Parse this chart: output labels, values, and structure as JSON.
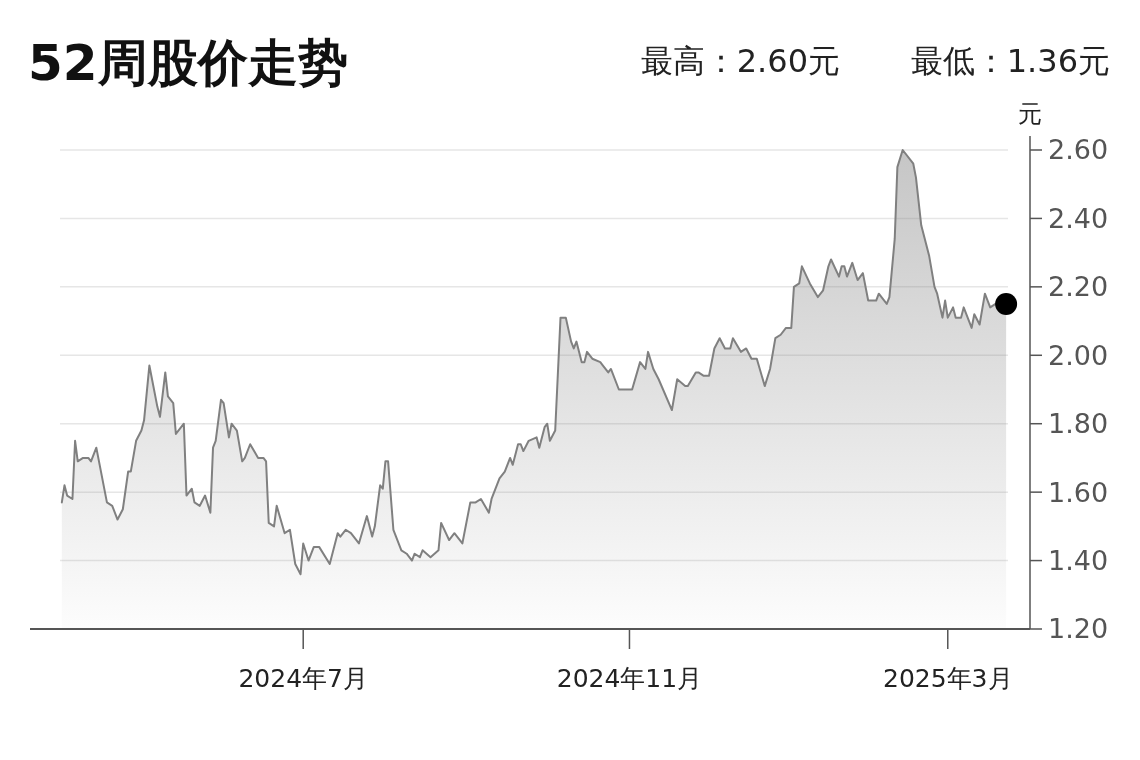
{
  "chart_data": {
    "type": "area",
    "title": "52周股价走势",
    "annotations": [
      "最高：2.60元",
      "最低：1.36元"
    ],
    "ylabel": "元",
    "xlim": [
      "2024-03-20",
      "2025-04-01"
    ],
    "xticks": [
      {
        "value": "2024-07-01",
        "label": "2024年7月"
      },
      {
        "value": "2024-11-01",
        "label": "2024年11月"
      },
      {
        "value": "2025-03-01",
        "label": "2025年3月"
      }
    ],
    "ylim": [
      1.2,
      2.6
    ],
    "yticks": [
      {
        "value": 1.2,
        "label": "1.20"
      },
      {
        "value": 1.4,
        "label": "1.40"
      },
      {
        "value": 1.6,
        "label": "1.60"
      },
      {
        "value": 1.8,
        "label": "1.80"
      },
      {
        "value": 2.0,
        "label": "2.00"
      },
      {
        "value": 2.2,
        "label": "2.20"
      },
      {
        "value": 2.4,
        "label": "2.40"
      },
      {
        "value": 2.6,
        "label": "2.60"
      }
    ],
    "grid": "y",
    "series": [
      {
        "color": "#808080",
        "x": [
          "2024-04-01",
          "2024-04-02",
          "2024-04-03",
          "2024-04-05",
          "2024-04-06",
          "2024-04-07",
          "2024-04-09",
          "2024-04-11",
          "2024-04-12",
          "2024-04-14",
          "2024-04-18",
          "2024-04-20",
          "2024-04-22",
          "2024-04-24",
          "2024-04-26",
          "2024-04-27",
          "2024-04-29",
          "2024-05-01",
          "2024-05-02",
          "2024-05-04",
          "2024-05-07",
          "2024-05-08",
          "2024-05-10",
          "2024-05-11",
          "2024-05-13",
          "2024-05-14",
          "2024-05-17",
          "2024-05-18",
          "2024-05-20",
          "2024-05-21",
          "2024-05-23",
          "2024-05-25",
          "2024-05-27",
          "2024-05-28",
          "2024-05-29",
          "2024-05-31",
          "2024-06-01",
          "2024-06-03",
          "2024-06-04",
          "2024-06-06",
          "2024-06-08",
          "2024-06-09",
          "2024-06-11",
          "2024-06-14",
          "2024-06-16",
          "2024-06-17",
          "2024-06-18",
          "2024-06-20",
          "2024-06-21",
          "2024-06-24",
          "2024-06-26",
          "2024-06-28",
          "2024-06-30",
          "2024-07-01",
          "2024-07-03",
          "2024-07-05",
          "2024-07-07",
          "2024-07-11",
          "2024-07-14",
          "2024-07-15",
          "2024-07-17",
          "2024-07-19",
          "2024-07-22",
          "2024-07-25",
          "2024-07-27",
          "2024-07-28",
          "2024-07-30",
          "2024-07-31",
          "2024-08-01",
          "2024-08-02",
          "2024-08-04",
          "2024-08-07",
          "2024-08-09",
          "2024-08-11",
          "2024-08-12",
          "2024-08-14",
          "2024-08-15",
          "2024-08-18",
          "2024-08-21",
          "2024-08-22",
          "2024-08-25",
          "2024-08-27",
          "2024-08-30",
          "2024-09-02",
          "2024-09-04",
          "2024-09-06",
          "2024-09-09",
          "2024-09-10",
          "2024-09-13",
          "2024-09-15",
          "2024-09-17",
          "2024-09-18",
          "2024-09-20",
          "2024-09-21",
          "2024-09-22",
          "2024-09-24",
          "2024-09-27",
          "2024-09-28",
          "2024-09-30",
          "2024-10-01",
          "2024-10-02",
          "2024-10-04",
          "2024-10-06",
          "2024-10-08",
          "2024-10-10",
          "2024-10-11",
          "2024-10-12",
          "2024-10-14",
          "2024-10-15",
          "2024-10-16",
          "2024-10-18",
          "2024-10-21",
          "2024-10-22",
          "2024-10-24",
          "2024-10-25",
          "2024-10-28",
          "2024-11-02",
          "2024-11-05",
          "2024-11-07",
          "2024-11-08",
          "2024-11-10",
          "2024-11-12",
          "2024-11-17",
          "2024-11-19",
          "2024-11-22",
          "2024-11-23",
          "2024-11-26",
          "2024-11-27",
          "2024-11-29",
          "2024-12-01",
          "2024-12-03",
          "2024-12-05",
          "2024-12-07",
          "2024-12-09",
          "2024-12-10",
          "2024-12-13",
          "2024-12-15",
          "2024-12-17",
          "2024-12-19",
          "2024-12-22",
          "2024-12-24",
          "2024-12-26",
          "2024-12-28",
          "2024-12-30",
          "2025-01-01",
          "2025-01-02",
          "2025-01-04",
          "2025-01-05",
          "2025-01-08",
          "2025-01-11",
          "2025-01-13",
          "2025-01-15",
          "2025-01-16",
          "2025-01-19",
          "2025-01-20",
          "2025-01-21",
          "2025-01-22",
          "2025-01-24",
          "2025-01-26",
          "2025-01-28",
          "2025-01-30",
          "2025-02-02",
          "2025-02-03",
          "2025-02-06",
          "2025-02-07",
          "2025-02-09",
          "2025-02-10",
          "2025-02-12",
          "2025-02-16",
          "2025-02-17",
          "2025-02-19",
          "2025-02-22",
          "2025-02-24",
          "2025-02-25",
          "2025-02-27",
          "2025-02-28",
          "2025-03-01",
          "2025-03-03",
          "2025-03-04",
          "2025-03-06",
          "2025-03-07",
          "2025-03-10",
          "2025-03-11",
          "2025-03-13",
          "2025-03-15",
          "2025-03-17",
          "2025-03-19",
          "2025-03-23"
        ],
        "values": [
          1.57,
          1.62,
          1.59,
          1.58,
          1.75,
          1.69,
          1.7,
          1.7,
          1.69,
          1.73,
          1.57,
          1.56,
          1.52,
          1.55,
          1.66,
          1.66,
          1.75,
          1.78,
          1.81,
          1.97,
          1.85,
          1.82,
          1.95,
          1.88,
          1.86,
          1.77,
          1.8,
          1.59,
          1.61,
          1.57,
          1.56,
          1.59,
          1.54,
          1.73,
          1.75,
          1.87,
          1.86,
          1.76,
          1.8,
          1.78,
          1.69,
          1.7,
          1.74,
          1.7,
          1.7,
          1.69,
          1.51,
          1.5,
          1.56,
          1.48,
          1.49,
          1.39,
          1.36,
          1.45,
          1.4,
          1.44,
          1.44,
          1.39,
          1.48,
          1.47,
          1.49,
          1.48,
          1.45,
          1.53,
          1.47,
          1.5,
          1.62,
          1.61,
          1.69,
          1.69,
          1.49,
          1.43,
          1.42,
          1.4,
          1.42,
          1.41,
          1.43,
          1.41,
          1.43,
          1.51,
          1.46,
          1.48,
          1.45,
          1.57,
          1.57,
          1.58,
          1.54,
          1.58,
          1.64,
          1.66,
          1.7,
          1.68,
          1.74,
          1.74,
          1.72,
          1.75,
          1.76,
          1.73,
          1.79,
          1.8,
          1.75,
          1.78,
          2.11,
          2.11,
          2.04,
          2.02,
          2.04,
          1.98,
          1.98,
          2.01,
          1.99,
          1.98,
          1.97,
          1.95,
          1.96,
          1.9,
          1.9,
          1.98,
          1.96,
          2.01,
          1.96,
          1.93,
          1.84,
          1.93,
          1.91,
          1.91,
          1.95,
          1.95,
          1.94,
          1.94,
          2.02,
          2.05,
          2.02,
          2.02,
          2.05,
          2.01,
          2.02,
          1.99,
          1.99,
          1.91,
          1.96,
          2.05,
          2.06,
          2.08,
          2.08,
          2.2,
          2.21,
          2.26,
          2.21,
          2.17,
          2.19,
          2.26,
          2.28,
          2.23,
          2.26,
          2.26,
          2.23,
          2.27,
          2.22,
          2.24,
          2.16,
          2.16,
          2.18,
          2.15,
          2.17,
          2.34,
          2.55,
          2.6,
          2.56,
          2.52,
          2.38,
          2.29,
          2.2,
          2.18,
          2.11,
          2.16,
          2.11,
          2.14,
          2.11,
          2.11,
          2.14,
          2.08,
          2.12,
          2.09,
          2.18,
          2.14,
          2.15,
          2.15
        ]
      },
      {
        "type": "scatter",
        "color": "#000000",
        "marker": "circle",
        "x": [
          "2025-03-23"
        ],
        "values": [
          2.15
        ]
      }
    ]
  }
}
